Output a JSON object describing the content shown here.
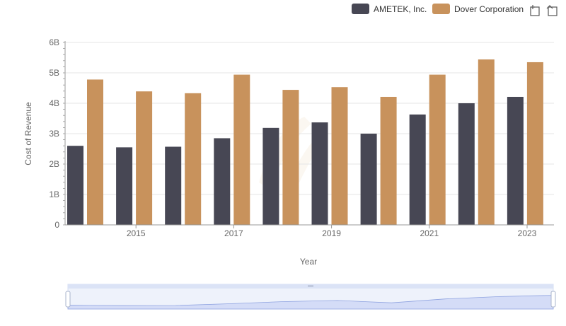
{
  "toolbar": {
    "icons": [
      "zoom-icon",
      "reset-zoom-icon"
    ]
  },
  "chart_data": {
    "type": "bar",
    "title": "",
    "xlabel": "Year",
    "ylabel": "Cost of Revenue",
    "ylim": [
      0,
      6000000000
    ],
    "y_ticks": [
      {
        "value": 0,
        "label": "0"
      },
      {
        "value": 1000000000,
        "label": "1B"
      },
      {
        "value": 2000000000,
        "label": "2B"
      },
      {
        "value": 3000000000,
        "label": "3B"
      },
      {
        "value": 4000000000,
        "label": "4B"
      },
      {
        "value": 5000000000,
        "label": "5B"
      },
      {
        "value": 6000000000,
        "label": "6B"
      }
    ],
    "x_tick_labels": [
      "2015",
      "2017",
      "2019",
      "2021",
      "2023"
    ],
    "categories": [
      2014,
      2015,
      2016,
      2017,
      2018,
      2019,
      2020,
      2021,
      2022,
      2023
    ],
    "grid": "horizontal",
    "legend_position": "top-right",
    "series": [
      {
        "name": "AMETEK, Inc.",
        "color": "#474754",
        "values": [
          2600000000,
          2550000000,
          2570000000,
          2850000000,
          3190000000,
          3370000000,
          3000000000,
          3630000000,
          4000000000,
          4210000000
        ]
      },
      {
        "name": "Dover Corporation",
        "color": "#c8925c",
        "values": [
          4780000000,
          4390000000,
          4330000000,
          4940000000,
          4440000000,
          4530000000,
          4210000000,
          4940000000,
          5440000000,
          5350000000
        ]
      }
    ],
    "navigator": true
  }
}
